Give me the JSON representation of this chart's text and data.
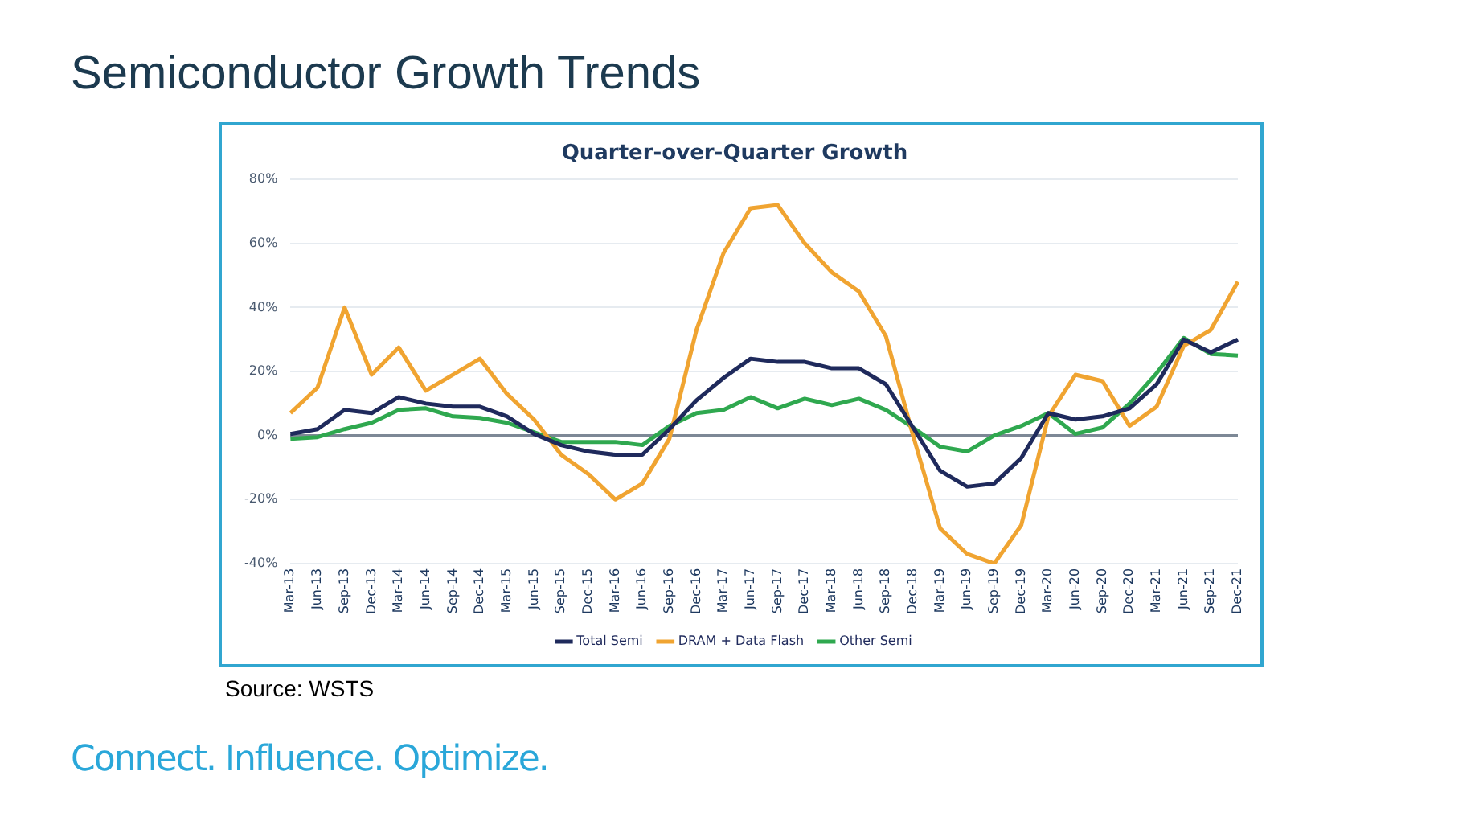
{
  "chart_data": {
    "type": "line",
    "title": "Semiconductor Growth Trends",
    "subtitle": "Quarter-over-Quarter Growth",
    "categories": [
      "Mar-13",
      "Jun-13",
      "Sep-13",
      "Dec-13",
      "Mar-14",
      "Jun-14",
      "Sep-14",
      "Dec-14",
      "Mar-15",
      "Jun-15",
      "Sep-15",
      "Dec-15",
      "Mar-16",
      "Jun-16",
      "Sep-16",
      "Dec-16",
      "Mar-17",
      "Jun-17",
      "Sep-17",
      "Dec-17",
      "Mar-18",
      "Jun-18",
      "Sep-18",
      "Dec-18",
      "Mar-19",
      "Jun-19",
      "Sep-19",
      "Dec-19",
      "Mar-20",
      "Jun-20",
      "Sep-20",
      "Dec-20",
      "Mar-21",
      "Jun-21",
      "Sep-21",
      "Dec-21"
    ],
    "series": [
      {
        "name": "Total Semi",
        "color": "#1f2a5c",
        "values": [
          0.5,
          2,
          8,
          7,
          12,
          10,
          9,
          9,
          6,
          0.5,
          -3,
          -5,
          -6,
          -6,
          2,
          11,
          18,
          24,
          23,
          23,
          21,
          21,
          16,
          2.5,
          -11,
          -16,
          -15,
          -7,
          7,
          5,
          6,
          8.5,
          16,
          30,
          26,
          30
        ]
      },
      {
        "name": "DRAM + Data Flash",
        "color": "#f0a431",
        "values": [
          7,
          15,
          40,
          19,
          27.5,
          14,
          19,
          24,
          13,
          5,
          -6,
          -12,
          -20,
          -15,
          -1,
          33,
          57,
          71,
          72,
          60,
          51,
          45,
          31,
          0,
          -29,
          -37,
          -40,
          -28,
          6,
          19,
          17,
          3,
          9,
          28,
          33,
          48
        ]
      },
      {
        "name": "Other Semi",
        "color": "#2fa84f",
        "values": [
          -1,
          -0.5,
          2,
          4,
          8,
          8.5,
          6,
          5.5,
          4,
          1,
          -2,
          -2,
          -2,
          -3,
          3,
          7,
          8,
          12,
          8.5,
          11.5,
          9.5,
          11.5,
          8,
          2.5,
          -3.5,
          -5,
          0,
          3,
          7,
          0.5,
          2.5,
          10,
          19.5,
          30.5,
          25.5,
          25
        ]
      }
    ],
    "ylim": [
      -40,
      80
    ],
    "yticks": [
      {
        "value": -40,
        "label": "-40%"
      },
      {
        "value": -20,
        "label": "-20%"
      },
      {
        "value": 0,
        "label": "0%"
      },
      {
        "value": 20,
        "label": "20%"
      },
      {
        "value": 40,
        "label": "40%"
      },
      {
        "value": 60,
        "label": "60%"
      },
      {
        "value": 80,
        "label": "80%"
      }
    ],
    "grid": "y",
    "legend": "bottom",
    "marker": "none",
    "line_style": "solid",
    "annotations": [
      "Source: WSTS",
      "Connect. Influence. Optimize."
    ]
  }
}
